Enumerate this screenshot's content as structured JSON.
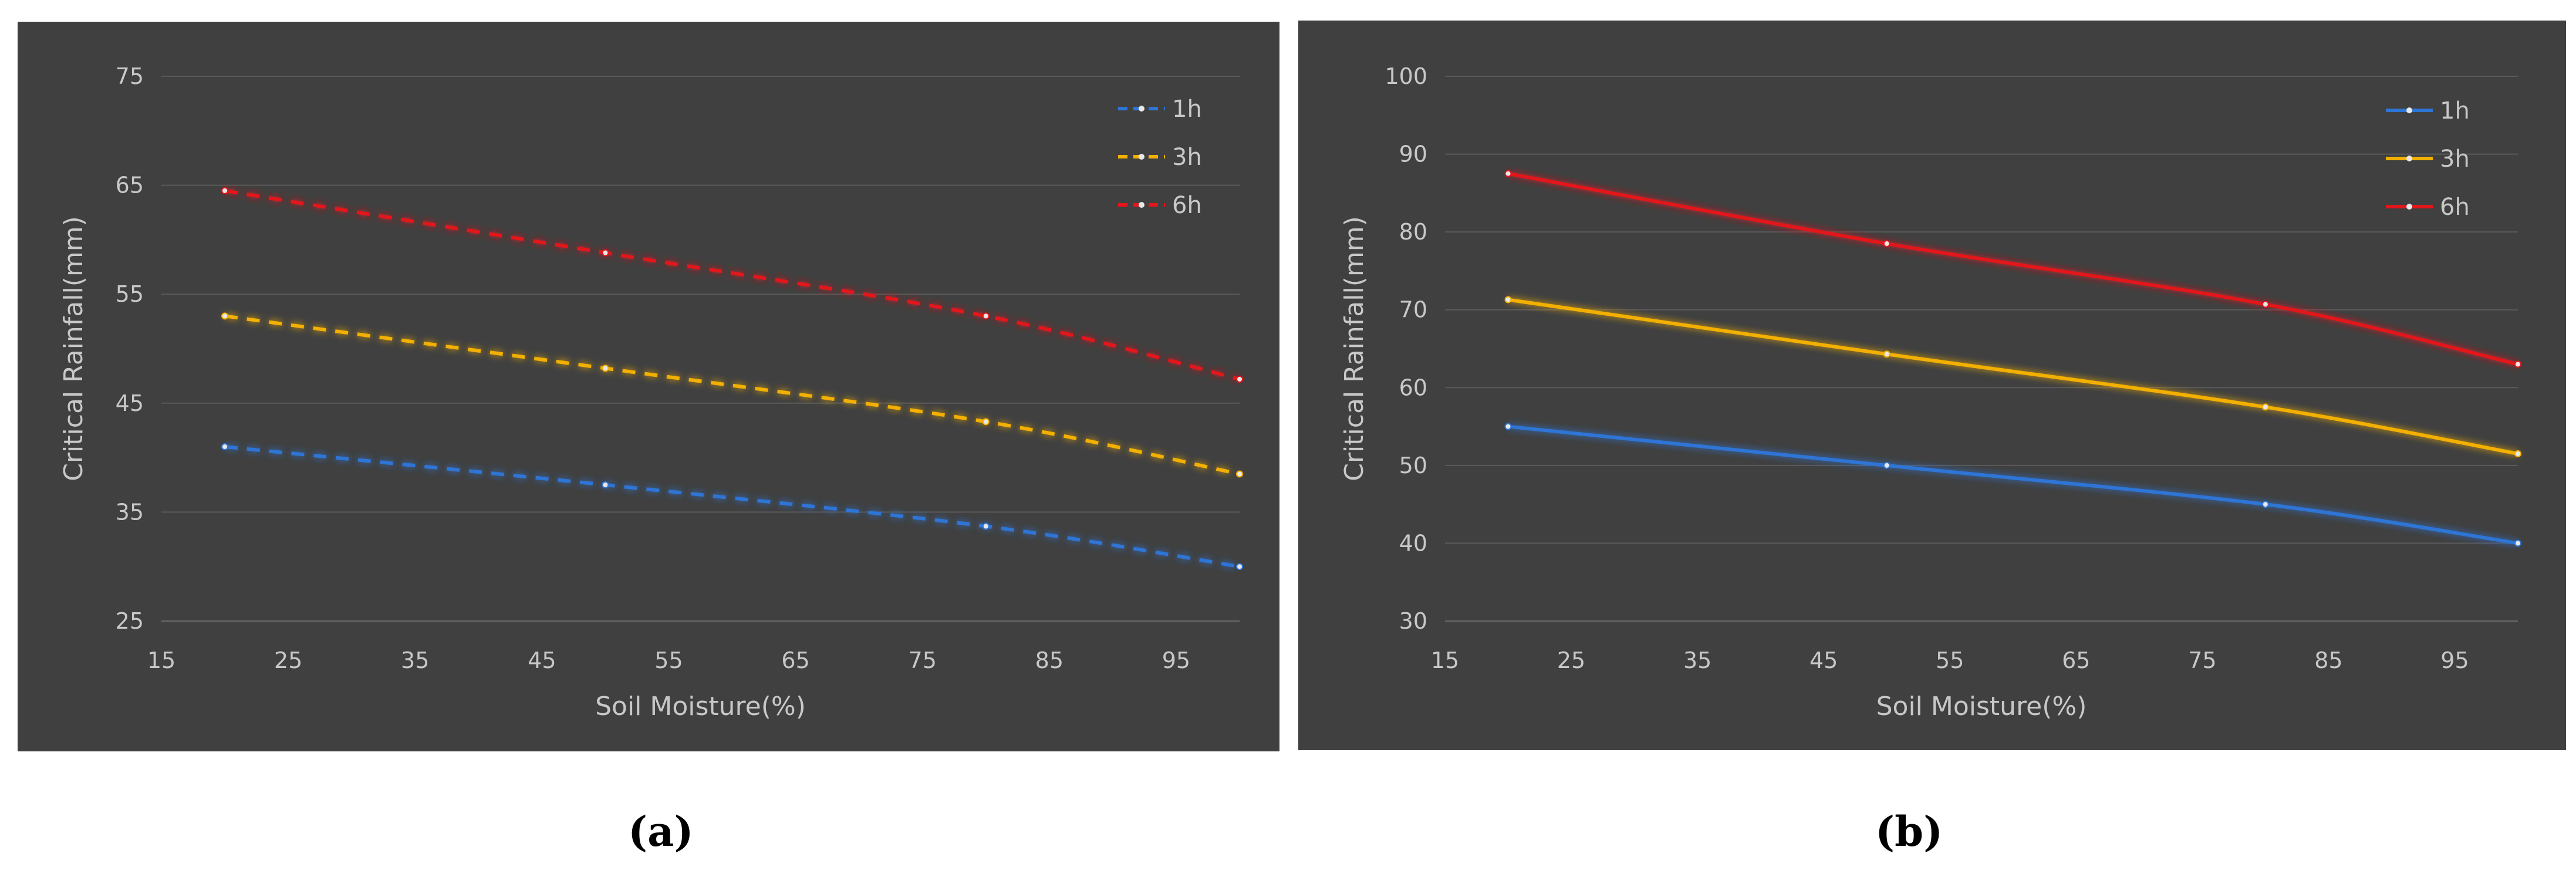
{
  "chart_data": [
    {
      "type": "line",
      "panel_label": "(a)",
      "xlabel": "Soil Moisture(%)",
      "ylabel": "Critical Rainfall(mm)",
      "xlim": [
        15,
        100
      ],
      "ylim": [
        25,
        75
      ],
      "xticks": [
        15,
        25,
        35,
        45,
        55,
        65,
        75,
        85,
        95
      ],
      "yticks": [
        25,
        35,
        45,
        55,
        65,
        75
      ],
      "line_style": "dashed",
      "legend_position": "top-right",
      "x": [
        20,
        50,
        80,
        100
      ],
      "series": [
        {
          "name": "1h",
          "values": [
            41,
            37.5,
            33.7,
            30
          ],
          "color": "#2e75d6"
        },
        {
          "name": "3h",
          "values": [
            53,
            48.2,
            43.3,
            38.5
          ],
          "color": "#f3b000"
        },
        {
          "name": "6h",
          "values": [
            64.5,
            58.8,
            53,
            47.2
          ],
          "color": "#e3161b"
        }
      ]
    },
    {
      "type": "line",
      "panel_label": "(b)",
      "xlabel": "Soil Moisture(%)",
      "ylabel": "Critical Rainfall(mm)",
      "xlim": [
        15,
        100
      ],
      "ylim": [
        30,
        100
      ],
      "xticks": [
        15,
        25,
        35,
        45,
        55,
        65,
        75,
        85,
        95
      ],
      "yticks": [
        30,
        40,
        50,
        60,
        70,
        80,
        90,
        100
      ],
      "line_style": "solid",
      "legend_position": "top-right",
      "x": [
        20,
        50,
        80,
        100
      ],
      "series": [
        {
          "name": "1h",
          "values": [
            55,
            50,
            45,
            40
          ],
          "color": "#2e75d6"
        },
        {
          "name": "3h",
          "values": [
            71.3,
            64.3,
            57.5,
            51.5
          ],
          "color": "#f3b000"
        },
        {
          "name": "6h",
          "values": [
            87.5,
            78.5,
            70.7,
            63
          ],
          "color": "#e3161b"
        }
      ]
    }
  ],
  "style": {
    "panel_background": "#404040",
    "grid_color": "#5a5a5a",
    "text_color": "#c8c8c8"
  }
}
